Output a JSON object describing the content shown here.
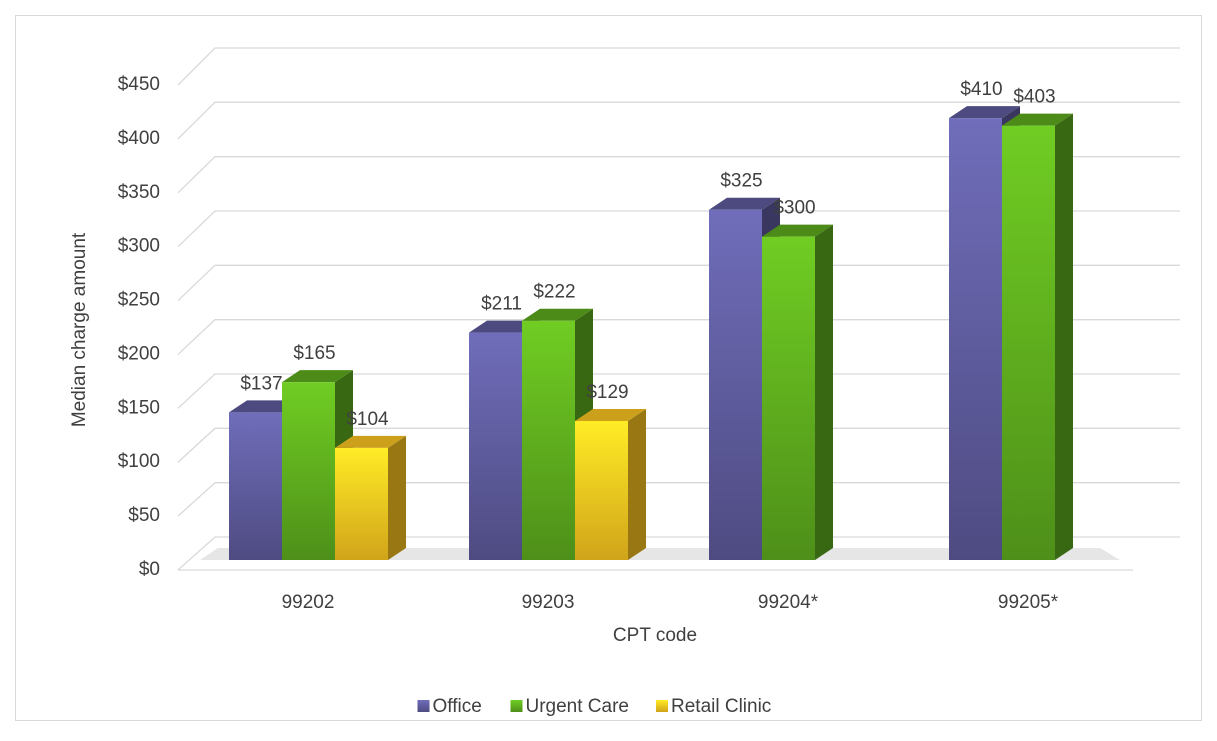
{
  "chart_data": {
    "type": "bar3d",
    "categories": [
      "99202",
      "99203",
      "99204*",
      "99205*"
    ],
    "series": [
      {
        "name": "Office",
        "color": "#5f5c9e",
        "values": [
          137,
          211,
          325,
          410
        ],
        "value_labels": [
          "$137",
          "$211",
          "$325",
          "$410"
        ]
      },
      {
        "name": "Urgent Care",
        "color": "#5fae1e",
        "values": [
          165,
          222,
          300,
          403
        ],
        "value_labels": [
          "$165",
          "$222",
          "$300",
          "$403"
        ]
      },
      {
        "name": "Retail Clinic",
        "color": "#ffc820",
        "values": [
          104,
          129,
          null,
          null
        ],
        "value_labels": [
          "$104",
          "$129",
          null,
          null
        ]
      }
    ],
    "ylabel": "Median charge amount",
    "xlabel": "CPT code",
    "ylim": [
      0,
      450
    ],
    "yticks": [
      {
        "value": 0,
        "label": "$0"
      },
      {
        "value": 50,
        "label": "$50"
      },
      {
        "value": 100,
        "label": "$100"
      },
      {
        "value": 150,
        "label": "$150"
      },
      {
        "value": 200,
        "label": "$200"
      },
      {
        "value": 250,
        "label": "$250"
      },
      {
        "value": 300,
        "label": "$300"
      },
      {
        "value": 350,
        "label": "$350"
      },
      {
        "value": 400,
        "label": "$400"
      },
      {
        "value": 450,
        "label": "$450"
      }
    ],
    "grid": true,
    "legend": "bottom"
  }
}
